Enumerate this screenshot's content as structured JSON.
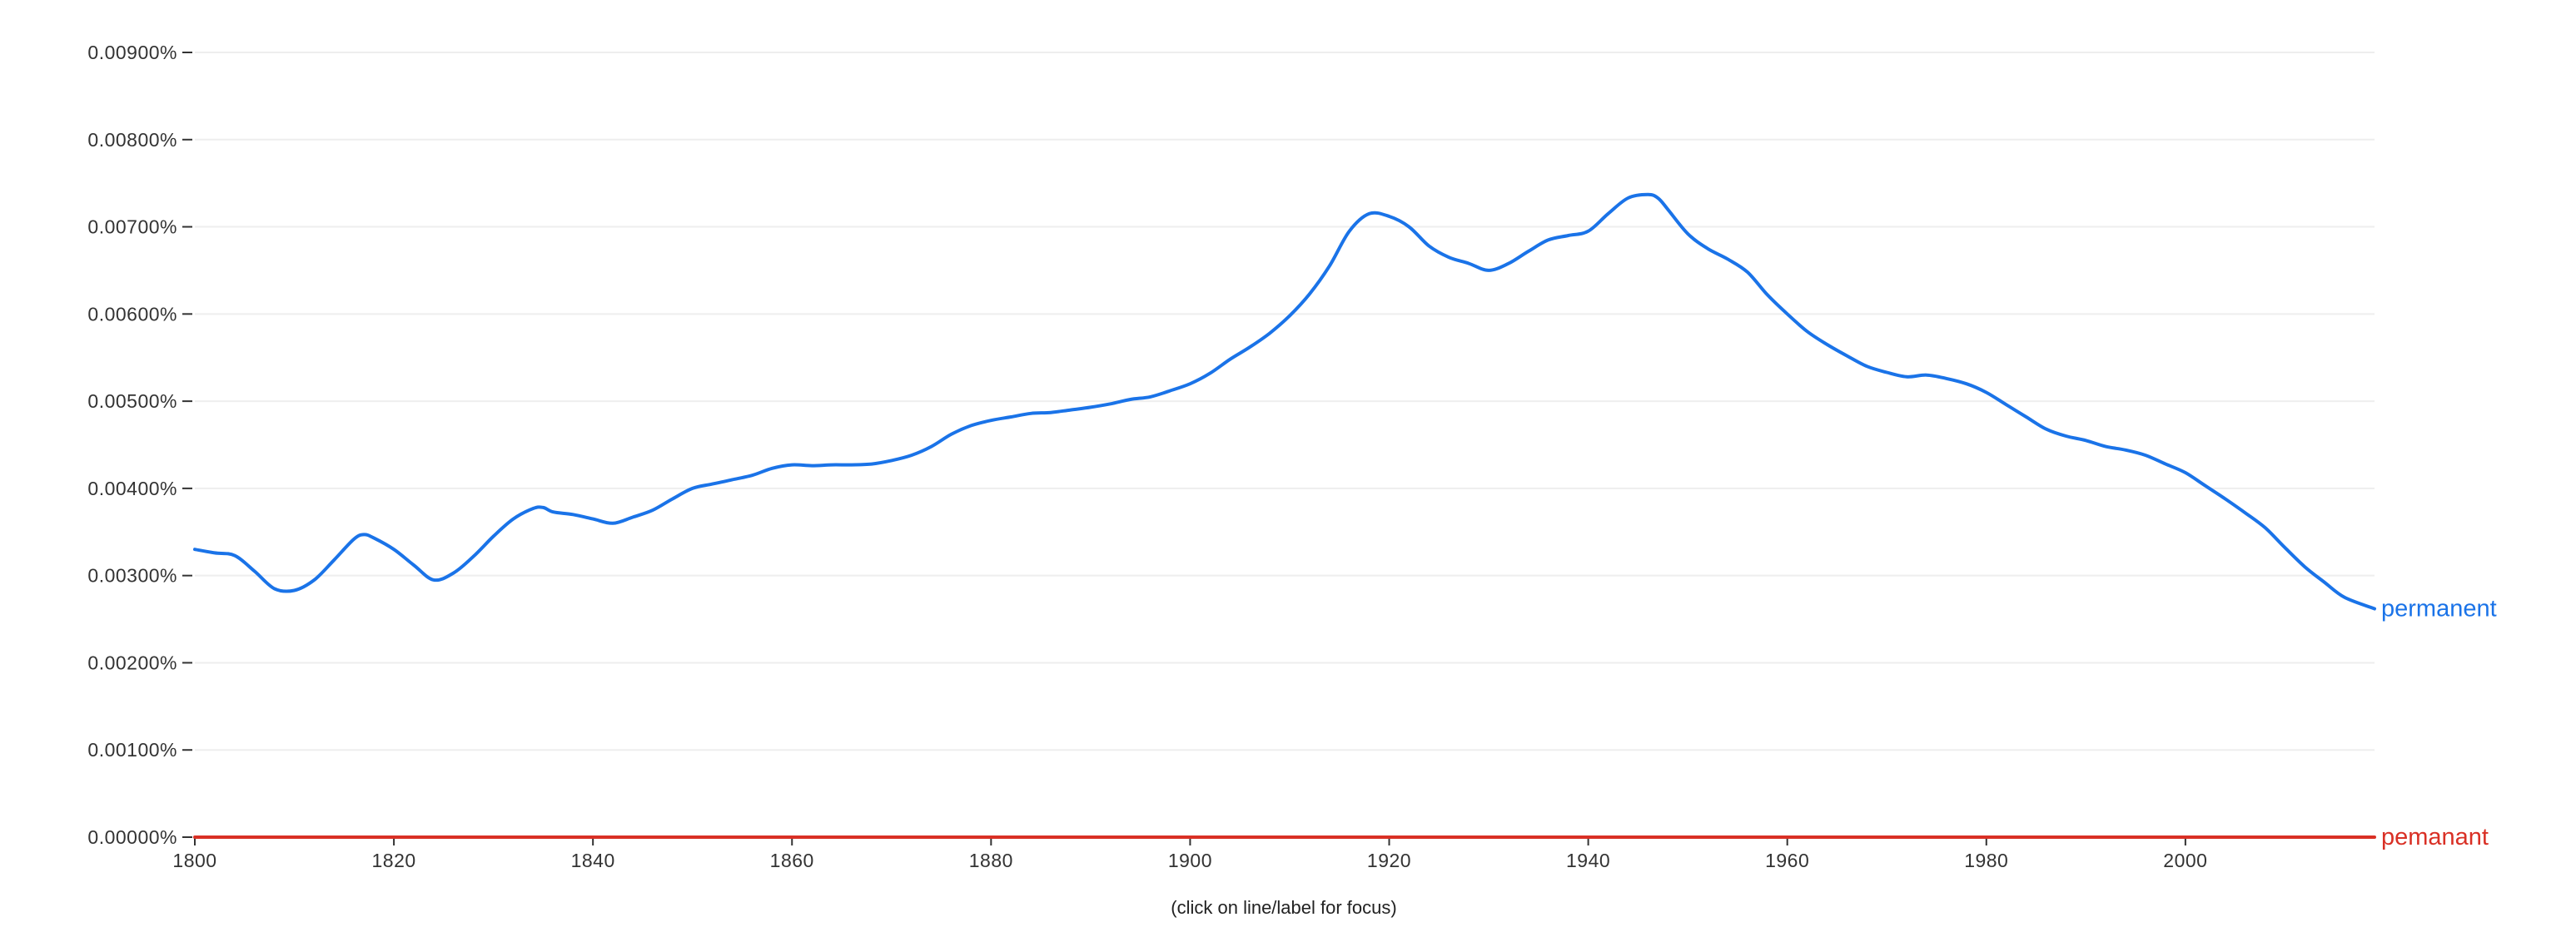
{
  "chart_data": {
    "type": "line",
    "title": "",
    "xlabel": "",
    "ylabel": "",
    "footer_note": "(click on line/label for focus)",
    "xlim": [
      1800,
      2019
    ],
    "ylim": [
      0,
      0.009
    ],
    "x_ticks": [
      1800,
      1820,
      1840,
      1860,
      1880,
      1900,
      1920,
      1940,
      1960,
      1980,
      2000
    ],
    "x_tick_labels": [
      "1800",
      "1820",
      "1840",
      "1860",
      "1880",
      "1900",
      "1920",
      "1940",
      "1960",
      "1980",
      "2000"
    ],
    "y_ticks": [
      0,
      0.001,
      0.002,
      0.003,
      0.004,
      0.005,
      0.006,
      0.007,
      0.008,
      0.009
    ],
    "y_tick_labels": [
      "0.00000%",
      "0.00100%",
      "0.00200%",
      "0.00300%",
      "0.00400%",
      "0.00500%",
      "0.00600%",
      "0.00700%",
      "0.00800%",
      "0.00900%"
    ],
    "grid": true,
    "legend": "inline labels at line ends",
    "series": [
      {
        "name": "permanent",
        "color": "#1a73e8",
        "points": [
          [
            1800,
            0.0033
          ],
          [
            1802,
            0.00326
          ],
          [
            1804,
            0.00323
          ],
          [
            1806,
            0.00305
          ],
          [
            1808,
            0.00285
          ],
          [
            1810,
            0.00283
          ],
          [
            1812,
            0.00295
          ],
          [
            1814,
            0.00318
          ],
          [
            1816,
            0.00342
          ],
          [
            1817,
            0.00347
          ],
          [
            1818,
            0.00343
          ],
          [
            1820,
            0.0033
          ],
          [
            1822,
            0.00312
          ],
          [
            1824,
            0.00295
          ],
          [
            1826,
            0.00303
          ],
          [
            1828,
            0.00322
          ],
          [
            1830,
            0.00345
          ],
          [
            1832,
            0.00365
          ],
          [
            1834,
            0.00377
          ],
          [
            1835,
            0.00378
          ],
          [
            1836,
            0.00373
          ],
          [
            1838,
            0.0037
          ],
          [
            1840,
            0.00365
          ],
          [
            1842,
            0.0036
          ],
          [
            1844,
            0.00367
          ],
          [
            1846,
            0.00375
          ],
          [
            1848,
            0.00388
          ],
          [
            1850,
            0.004
          ],
          [
            1852,
            0.00405
          ],
          [
            1854,
            0.0041
          ],
          [
            1856,
            0.00415
          ],
          [
            1858,
            0.00423
          ],
          [
            1860,
            0.00427
          ],
          [
            1862,
            0.00426
          ],
          [
            1864,
            0.00427
          ],
          [
            1866,
            0.00427
          ],
          [
            1868,
            0.00428
          ],
          [
            1870,
            0.00432
          ],
          [
            1872,
            0.00438
          ],
          [
            1874,
            0.00448
          ],
          [
            1876,
            0.00462
          ],
          [
            1878,
            0.00472
          ],
          [
            1880,
            0.00478
          ],
          [
            1882,
            0.00482
          ],
          [
            1884,
            0.00486
          ],
          [
            1886,
            0.00487
          ],
          [
            1888,
            0.0049
          ],
          [
            1890,
            0.00493
          ],
          [
            1892,
            0.00497
          ],
          [
            1894,
            0.00502
          ],
          [
            1896,
            0.00505
          ],
          [
            1898,
            0.00512
          ],
          [
            1900,
            0.0052
          ],
          [
            1902,
            0.00532
          ],
          [
            1904,
            0.00548
          ],
          [
            1906,
            0.00562
          ],
          [
            1908,
            0.00578
          ],
          [
            1910,
            0.00598
          ],
          [
            1912,
            0.00623
          ],
          [
            1914,
            0.00655
          ],
          [
            1916,
            0.00695
          ],
          [
            1918,
            0.00715
          ],
          [
            1920,
            0.00712
          ],
          [
            1922,
            0.007
          ],
          [
            1924,
            0.00678
          ],
          [
            1926,
            0.00665
          ],
          [
            1928,
            0.00658
          ],
          [
            1930,
            0.0065
          ],
          [
            1932,
            0.00658
          ],
          [
            1934,
            0.00672
          ],
          [
            1936,
            0.00685
          ],
          [
            1938,
            0.0069
          ],
          [
            1940,
            0.00695
          ],
          [
            1942,
            0.00715
          ],
          [
            1944,
            0.00733
          ],
          [
            1946,
            0.00737
          ],
          [
            1947,
            0.00733
          ],
          [
            1948,
            0.0072
          ],
          [
            1950,
            0.00692
          ],
          [
            1952,
            0.00675
          ],
          [
            1954,
            0.00663
          ],
          [
            1956,
            0.00648
          ],
          [
            1958,
            0.00622
          ],
          [
            1960,
            0.006
          ],
          [
            1962,
            0.0058
          ],
          [
            1964,
            0.00565
          ],
          [
            1966,
            0.00552
          ],
          [
            1968,
            0.0054
          ],
          [
            1970,
            0.00533
          ],
          [
            1972,
            0.00528
          ],
          [
            1974,
            0.0053
          ],
          [
            1976,
            0.00526
          ],
          [
            1978,
            0.0052
          ],
          [
            1980,
            0.0051
          ],
          [
            1982,
            0.00496
          ],
          [
            1984,
            0.00482
          ],
          [
            1986,
            0.00468
          ],
          [
            1988,
            0.0046
          ],
          [
            1990,
            0.00455
          ],
          [
            1992,
            0.00448
          ],
          [
            1994,
            0.00444
          ],
          [
            1996,
            0.00438
          ],
          [
            1998,
            0.00428
          ],
          [
            2000,
            0.00418
          ],
          [
            2002,
            0.00403
          ],
          [
            2004,
            0.00388
          ],
          [
            2006,
            0.00372
          ],
          [
            2008,
            0.00355
          ],
          [
            2010,
            0.00332
          ],
          [
            2012,
            0.0031
          ],
          [
            2014,
            0.00292
          ],
          [
            2016,
            0.00275
          ],
          [
            2019,
            0.00262
          ]
        ]
      },
      {
        "name": "pemanant",
        "color": "#d93025",
        "points": [
          [
            1800,
            0.0
          ],
          [
            2019,
            0.0
          ]
        ]
      }
    ]
  }
}
